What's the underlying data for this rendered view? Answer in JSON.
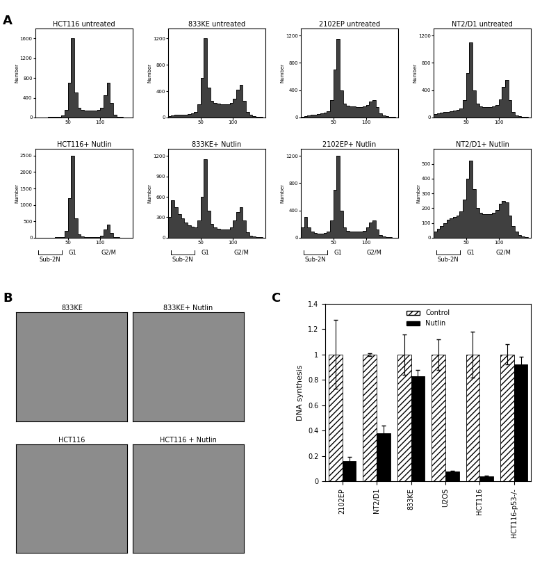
{
  "panel_labels": [
    "A",
    "B",
    "C"
  ],
  "chart_data": [
    {
      "type": "histogram",
      "title": "HCT116 untreated",
      "y_label": "Number",
      "color": "#404040",
      "bins": [
        0,
        5,
        10,
        15,
        20,
        25,
        30,
        35,
        40,
        45,
        50,
        55,
        60,
        65,
        70,
        75,
        80,
        85,
        90,
        95,
        100,
        105,
        110,
        115,
        120,
        125,
        130,
        135,
        140,
        145,
        150
      ],
      "counts": [
        0,
        0,
        5,
        5,
        10,
        10,
        15,
        20,
        40,
        150,
        700,
        1600,
        500,
        200,
        150,
        140,
        140,
        140,
        140,
        150,
        200,
        450,
        700,
        300,
        60,
        20,
        10,
        5,
        0,
        0
      ],
      "xlim": [
        0,
        150
      ],
      "xticks": [
        50,
        100
      ],
      "ylim": [
        0,
        1800
      ],
      "yticks": [
        0,
        400,
        800,
        1200,
        1600
      ]
    },
    {
      "type": "histogram",
      "title": "833KE untreated",
      "y_label": "Number",
      "color": "#404040",
      "bins": [
        0,
        5,
        10,
        15,
        20,
        25,
        30,
        35,
        40,
        45,
        50,
        55,
        60,
        65,
        70,
        75,
        80,
        85,
        90,
        95,
        100,
        105,
        110,
        115,
        120,
        125,
        130,
        135,
        140,
        145,
        150
      ],
      "counts": [
        20,
        30,
        40,
        40,
        40,
        40,
        50,
        60,
        80,
        200,
        600,
        1200,
        450,
        250,
        220,
        210,
        200,
        200,
        200,
        220,
        280,
        420,
        500,
        250,
        80,
        40,
        20,
        10,
        5,
        0
      ],
      "xlim": [
        0,
        150
      ],
      "xticks": [
        50,
        100
      ],
      "ylim": [
        0,
        1350
      ],
      "yticks": [
        0,
        400,
        800,
        1200
      ]
    },
    {
      "type": "histogram",
      "title": "2102EP untreated",
      "y_label": "Number",
      "color": "#404040",
      "bins": [
        0,
        5,
        10,
        15,
        20,
        25,
        30,
        35,
        40,
        45,
        50,
        55,
        60,
        65,
        70,
        75,
        80,
        85,
        90,
        95,
        100,
        105,
        110,
        115,
        120,
        125,
        130,
        135,
        140,
        145,
        150
      ],
      "counts": [
        10,
        20,
        30,
        40,
        40,
        50,
        60,
        70,
        90,
        250,
        700,
        1150,
        400,
        200,
        170,
        160,
        160,
        150,
        150,
        160,
        180,
        230,
        250,
        150,
        60,
        30,
        15,
        10,
        5,
        0
      ],
      "xlim": [
        0,
        150
      ],
      "xticks": [
        50,
        100
      ],
      "ylim": [
        0,
        1300
      ],
      "yticks": [
        0,
        400,
        800,
        1200
      ]
    },
    {
      "type": "histogram",
      "title": "NT2/D1 untreated",
      "y_label": "Number",
      "color": "#404040",
      "bins": [
        0,
        5,
        10,
        15,
        20,
        25,
        30,
        35,
        40,
        45,
        50,
        55,
        60,
        65,
        70,
        75,
        80,
        85,
        90,
        95,
        100,
        105,
        110,
        115,
        120,
        125,
        130,
        135,
        140,
        145,
        150
      ],
      "counts": [
        50,
        60,
        70,
        80,
        80,
        90,
        100,
        110,
        130,
        250,
        650,
        1100,
        400,
        200,
        160,
        150,
        150,
        150,
        160,
        180,
        260,
        450,
        550,
        250,
        80,
        30,
        15,
        10,
        5,
        0
      ],
      "xlim": [
        0,
        150
      ],
      "xticks": [
        50,
        100
      ],
      "ylim": [
        0,
        1300
      ],
      "yticks": [
        0,
        400,
        800,
        1200
      ]
    },
    {
      "type": "histogram",
      "title": "HCT116+ Nutlin",
      "y_label": "Number",
      "color": "#404040",
      "bins": [
        0,
        5,
        10,
        15,
        20,
        25,
        30,
        35,
        40,
        45,
        50,
        55,
        60,
        65,
        70,
        75,
        80,
        85,
        90,
        95,
        100,
        105,
        110,
        115,
        120,
        125,
        130,
        135,
        140,
        145,
        150
      ],
      "counts": [
        0,
        0,
        0,
        5,
        5,
        5,
        10,
        10,
        20,
        200,
        1200,
        2500,
        600,
        100,
        40,
        20,
        15,
        15,
        15,
        20,
        60,
        250,
        400,
        150,
        30,
        10,
        5,
        0,
        0,
        0
      ],
      "xlim": [
        0,
        150
      ],
      "xticks": [
        50,
        100
      ],
      "ylim": [
        0,
        2700
      ],
      "yticks": [
        0,
        500,
        1000,
        1500,
        2000,
        2500
      ],
      "annotations": [
        "Sub-2N",
        "G1",
        "G2/M"
      ]
    },
    {
      "type": "histogram",
      "title": "833KE+ Nutlin",
      "y_label": "Number",
      "color": "#404040",
      "bins": [
        0,
        5,
        10,
        15,
        20,
        25,
        30,
        35,
        40,
        45,
        50,
        55,
        60,
        65,
        70,
        75,
        80,
        85,
        90,
        95,
        100,
        105,
        110,
        115,
        120,
        125,
        130,
        135,
        140,
        145,
        150
      ],
      "counts": [
        300,
        550,
        450,
        350,
        280,
        220,
        180,
        160,
        150,
        250,
        600,
        1150,
        400,
        200,
        150,
        130,
        120,
        120,
        120,
        150,
        250,
        380,
        450,
        250,
        80,
        30,
        15,
        10,
        5,
        0
      ],
      "xlim": [
        0,
        150
      ],
      "xticks": [
        50,
        100
      ],
      "ylim": [
        0,
        1300
      ],
      "yticks": [
        0,
        300,
        600,
        900,
        1200
      ],
      "annotations": [
        "Sub-2N",
        "G1",
        "G2/M"
      ]
    },
    {
      "type": "histogram",
      "title": "2102EP+ Nutlin",
      "y_label": "Number",
      "color": "#404040",
      "bins": [
        0,
        5,
        10,
        15,
        20,
        25,
        30,
        35,
        40,
        45,
        50,
        55,
        60,
        65,
        70,
        75,
        80,
        85,
        90,
        95,
        100,
        105,
        110,
        115,
        120,
        125,
        130,
        135,
        140,
        145,
        150
      ],
      "counts": [
        150,
        300,
        150,
        90,
        70,
        60,
        60,
        70,
        90,
        250,
        700,
        1200,
        400,
        150,
        100,
        90,
        90,
        90,
        90,
        100,
        150,
        220,
        250,
        120,
        40,
        20,
        10,
        5,
        0,
        0
      ],
      "xlim": [
        0,
        150
      ],
      "xticks": [
        50,
        100
      ],
      "ylim": [
        0,
        1300
      ],
      "yticks": [
        0,
        400,
        800,
        1200
      ],
      "annotations": [
        "Sub-2N",
        "G1",
        "G2/M"
      ]
    },
    {
      "type": "histogram",
      "title": "NT2/D1+ Nutlin",
      "y_label": "Number",
      "color": "#404040",
      "bins": [
        0,
        5,
        10,
        15,
        20,
        25,
        30,
        35,
        40,
        45,
        50,
        55,
        60,
        65,
        70,
        75,
        80,
        85,
        90,
        95,
        100,
        105,
        110,
        115,
        120,
        125,
        130,
        135,
        140,
        145,
        150
      ],
      "counts": [
        40,
        60,
        80,
        100,
        120,
        130,
        140,
        150,
        180,
        260,
        400,
        520,
        330,
        200,
        170,
        160,
        160,
        160,
        170,
        190,
        230,
        250,
        240,
        150,
        80,
        40,
        20,
        10,
        5,
        0
      ],
      "xlim": [
        0,
        150
      ],
      "xticks": [
        50,
        100
      ],
      "ylim": [
        0,
        600
      ],
      "yticks": [
        0,
        100,
        200,
        300,
        400,
        500
      ],
      "annotations": [
        "Sub-2N",
        "G1",
        "G2/M"
      ]
    },
    {
      "type": "bar",
      "y_label": "DNA synthesis",
      "categories": [
        "2102EP",
        "NT2/D1",
        "833KE",
        "U2OS",
        "HCT116",
        "HCT116-p53-/-"
      ],
      "series": [
        {
          "name": "Control",
          "color": "#ffffff",
          "values": [
            1,
            1,
            1,
            1,
            1,
            1
          ],
          "errors": [
            0.27,
            0.01,
            0.16,
            0.12,
            0.18,
            0.08
          ]
        },
        {
          "name": "Nutlin",
          "color": "#000000",
          "values": [
            0.16,
            0.38,
            0.83,
            0.08,
            0.04,
            0.92
          ],
          "errors": [
            0.03,
            0.06,
            0.05,
            0.005,
            0.005,
            0.06
          ]
        }
      ],
      "ylim": [
        0,
        1.4
      ],
      "yticks": [
        0,
        0.2,
        0.4,
        0.6,
        0.8,
        1,
        1.2,
        1.4
      ],
      "legend": "upper center"
    }
  ],
  "images": [
    {
      "title": "833KE"
    },
    {
      "title": "833KE+ Nutlin"
    },
    {
      "title": "HCT116"
    },
    {
      "title": "HCT116 + Nutlin"
    }
  ]
}
